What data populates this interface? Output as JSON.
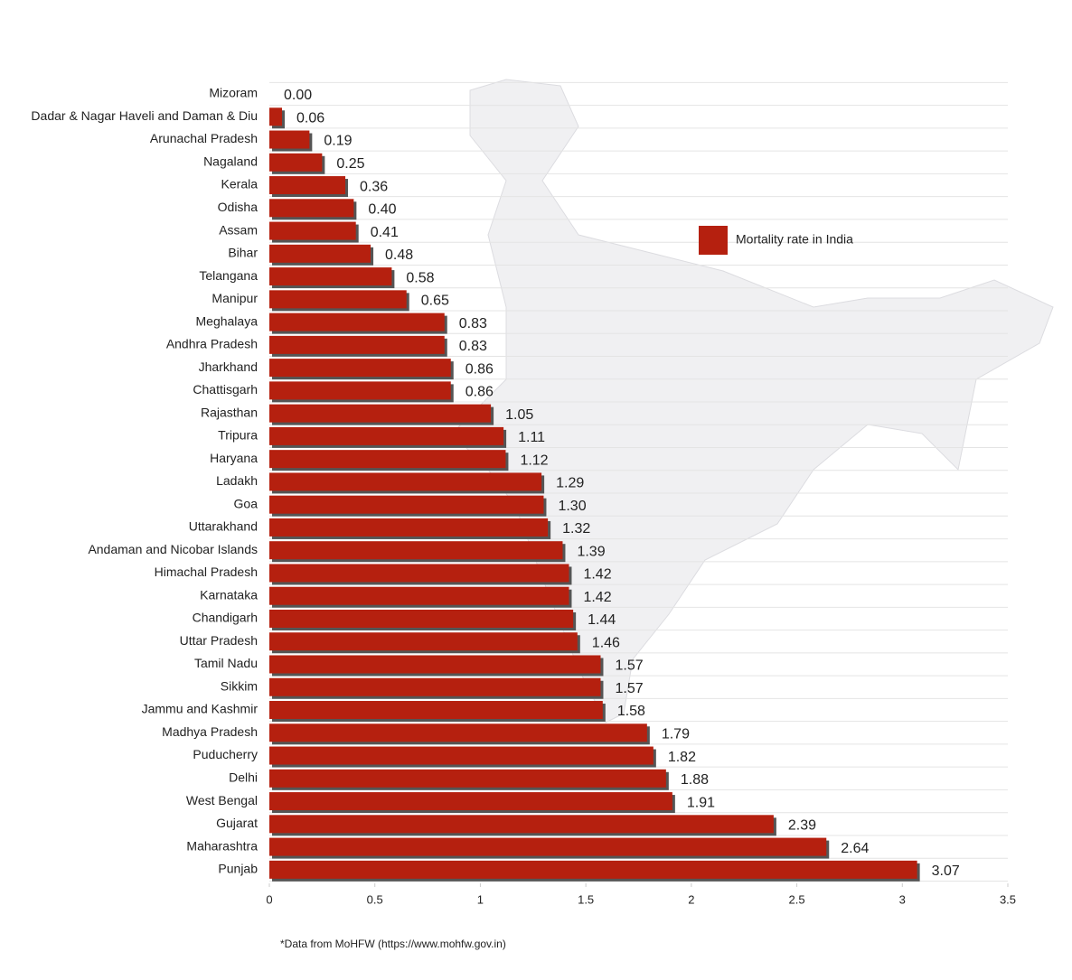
{
  "chart_data": {
    "type": "bar",
    "orientation": "horizontal",
    "categories": [
      "Mizoram",
      "Dadar & Nagar Haveli and Daman & Diu",
      "Arunachal Pradesh",
      "Nagaland",
      "Kerala",
      "Odisha",
      "Assam",
      "Bihar",
      "Telangana",
      "Manipur",
      "Meghalaya",
      "Andhra Pradesh",
      "Jharkhand",
      "Chattisgarh",
      "Rajasthan",
      "Tripura",
      "Haryana",
      "Ladakh",
      "Goa",
      "Uttarakhand",
      "Andaman and Nicobar Islands",
      "Himachal Pradesh",
      "Karnataka",
      "Chandigarh",
      "Uttar Pradesh",
      "Tamil Nadu",
      "Sikkim",
      "Jammu and Kashmir",
      "Madhya Pradesh",
      "Puducherry",
      "Delhi",
      "West Bengal",
      "Gujarat",
      "Maharashtra",
      "Punjab"
    ],
    "series": [
      {
        "name": "Mortality rate in India",
        "color": "#b5200f",
        "values": [
          0.0,
          0.06,
          0.19,
          0.25,
          0.36,
          0.4,
          0.41,
          0.48,
          0.58,
          0.65,
          0.83,
          0.83,
          0.86,
          0.86,
          1.05,
          1.11,
          1.12,
          1.29,
          1.3,
          1.32,
          1.39,
          1.42,
          1.42,
          1.44,
          1.46,
          1.57,
          1.57,
          1.58,
          1.79,
          1.82,
          1.88,
          1.91,
          2.39,
          2.64,
          3.07
        ],
        "value_labels": [
          "0.00",
          "0.06",
          "0.19",
          "0.25",
          "0.36",
          "0.40",
          "0.41",
          "0.48",
          "0.58",
          "0.65",
          "0.83",
          "0.83",
          "0.86",
          "0.86",
          "1.05",
          "1.11",
          "1.12",
          "1.29",
          "1.30",
          "1.32",
          "1.39",
          "1.42",
          "1.42",
          "1.44",
          "1.46",
          "1.57",
          "1.57",
          "1.58",
          "1.79",
          "1.82",
          "1.88",
          "1.91",
          "2.39",
          "2.64",
          "3.07"
        ]
      }
    ],
    "xlim": [
      0,
      3.5
    ],
    "xticks": [
      0,
      0.5,
      1,
      1.5,
      2,
      2.5,
      3,
      3.5
    ],
    "footnote": "*Data from MoHFW (https://www.mohfw.gov.in)"
  }
}
